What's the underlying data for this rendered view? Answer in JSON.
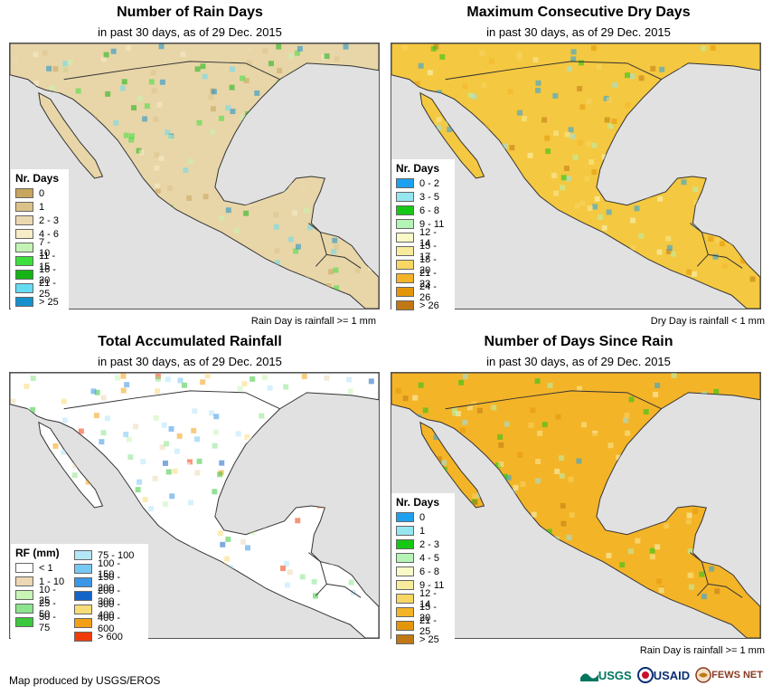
{
  "panels": [
    {
      "title": "Number of Rain Days",
      "subtitle": "in past 30 days, as of 29 Dec. 2015",
      "footnote": "Rain Day is rainfall >= 1 mm",
      "legend_title": "Nr. Days",
      "legend": [
        {
          "label": "0",
          "color": "#c8a45c"
        },
        {
          "label": "1",
          "color": "#dcc28a"
        },
        {
          "label": "2 - 3",
          "color": "#ecd8b0"
        },
        {
          "label": "4 - 6",
          "color": "#f6ecc8"
        },
        {
          "label": "7 - 10",
          "color": "#c4f4b4"
        },
        {
          "label": "11 - 15",
          "color": "#3ce03c"
        },
        {
          "label": "16 - 20",
          "color": "#14b414"
        },
        {
          "label": "21 - 25",
          "color": "#64dcf4"
        },
        {
          "label": "> 25",
          "color": "#1490cc"
        }
      ],
      "gulf_color": "#f6ecc8",
      "land_color": "#e8d6a8"
    },
    {
      "title": "Maximum Consecutive Dry Days",
      "subtitle": "in past 30 days, as of 29 Dec. 2015",
      "footnote": "Dry Day is rainfall < 1 mm",
      "legend_title": "Nr. Days",
      "legend": [
        {
          "label": "0 - 2",
          "color": "#1ea0f0"
        },
        {
          "label": "3 - 5",
          "color": "#96e6f0"
        },
        {
          "label": "6 - 8",
          "color": "#14c814"
        },
        {
          "label": "9 - 11",
          "color": "#b4f4b4"
        },
        {
          "label": "12 - 14",
          "color": "#fafac8"
        },
        {
          "label": "15 - 17",
          "color": "#f8ec9c"
        },
        {
          "label": "18 - 20",
          "color": "#f8d664"
        },
        {
          "label": "21 - 23",
          "color": "#f4b428"
        },
        {
          "label": "24 - 26",
          "color": "#e4960a"
        },
        {
          "label": "> 26",
          "color": "#c07814"
        }
      ],
      "gulf_color": "#f8ec9c",
      "land_color": "#f4c840"
    },
    {
      "title": "Total Accumulated Rainfall",
      "subtitle": "in past 30 days, as of 29 Dec. 2015",
      "legend_title": "RF (mm)",
      "legend_left": [
        {
          "label": "< 1",
          "color": "#ffffff"
        },
        {
          "label": "1 - 10",
          "color": "#ecd8b4"
        },
        {
          "label": "10 - 25",
          "color": "#c8f4b4"
        },
        {
          "label": "25 - 50",
          "color": "#8ce48c"
        },
        {
          "label": "50 - 75",
          "color": "#3cc83c"
        }
      ],
      "legend_right": [
        {
          "label": "75 - 100",
          "color": "#b4e6f8"
        },
        {
          "label": "100 - 150",
          "color": "#78c8f4"
        },
        {
          "label": "150 - 200",
          "color": "#3c96e6"
        },
        {
          "label": "200 - 300",
          "color": "#1464c8"
        },
        {
          "label": "300 - 400",
          "color": "#f8dc78"
        },
        {
          "label": "400 - 600",
          "color": "#f4a014"
        },
        {
          "label": "> 600",
          "color": "#f03c0a"
        }
      ],
      "gulf_color": "#c8f4b4",
      "land_color": "#ffffff"
    },
    {
      "title": "Number of Days Since Rain",
      "subtitle": "in past 30 days, as of 29 Dec. 2015",
      "footnote": "Rain Day is rainfall >= 1 mm",
      "legend_title": "Nr. Days",
      "legend": [
        {
          "label": "0",
          "color": "#1ea0f0"
        },
        {
          "label": "1",
          "color": "#96e6f0"
        },
        {
          "label": "2 - 3",
          "color": "#14c814"
        },
        {
          "label": "4 - 5",
          "color": "#b4f4b4"
        },
        {
          "label": "6 - 8",
          "color": "#fafac8"
        },
        {
          "label": "9 - 11",
          "color": "#f8ec9c"
        },
        {
          "label": "12 - 14",
          "color": "#f8d664"
        },
        {
          "label": "15 - 20",
          "color": "#f4b428"
        },
        {
          "label": "21 - 25",
          "color": "#e4960a"
        },
        {
          "label": "> 25",
          "color": "#c07814"
        }
      ],
      "gulf_color": "#f8d664",
      "land_color": "#f4b428"
    }
  ],
  "credit": "Map produced by USGS/EROS",
  "logos": {
    "usgs": "USGS",
    "usaid": "USAID",
    "fews": "FEWS NET"
  },
  "colors": {
    "ocean": "#e1e1e1",
    "border": "#333333"
  }
}
